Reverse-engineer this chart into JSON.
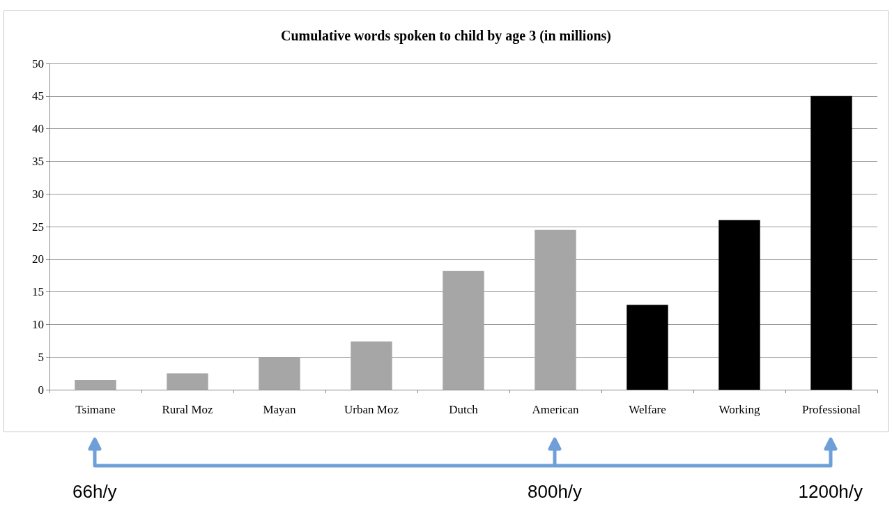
{
  "chart_data": {
    "type": "bar",
    "title": "Cumulative words spoken to child by age 3 (in millions)",
    "categories": [
      "Tsimane",
      "Rural Moz",
      "Mayan",
      "Urban Moz",
      "Dutch",
      "American",
      "Welfare",
      "Working",
      "Professional"
    ],
    "values": [
      1.5,
      2.5,
      5,
      7.4,
      18.2,
      24.5,
      13,
      26,
      45
    ],
    "colors": [
      "#a6a6a6",
      "#a6a6a6",
      "#a6a6a6",
      "#a6a6a6",
      "#a6a6a6",
      "#a6a6a6",
      "#000000",
      "#000000",
      "#000000"
    ],
    "ylim": [
      0,
      50
    ],
    "yticks": [
      0,
      5,
      10,
      15,
      20,
      25,
      30,
      35,
      40,
      45,
      50
    ],
    "grid": "y",
    "annotations": [
      {
        "text": "66h/y",
        "x": "Tsimane"
      },
      {
        "text": "800h/y",
        "x": "American"
      },
      {
        "text": "1200h/y",
        "x": "Professional"
      }
    ]
  }
}
